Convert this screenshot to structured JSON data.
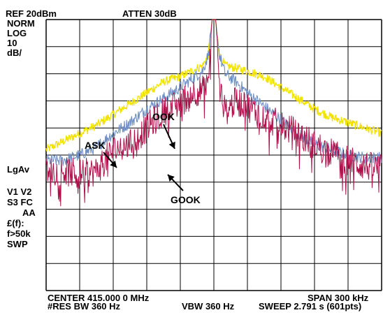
{
  "header": {
    "ref": "REF  20dBm",
    "atten": "ATTEN 30dB"
  },
  "left_panel": {
    "norm": "NORM",
    "log": "LOG",
    "scale": "10",
    "scale_unit": "dB/",
    "lgav": "LgAv",
    "v1v2": "V1 V2",
    "s3fc": "S3 FC",
    "aa": "AA",
    "ff": "£(f):",
    "f50k": "f>50k",
    "swp": "SWP"
  },
  "footer": {
    "center": "CENTER 415.000 0 MHz",
    "res_bw": "#RES BW 360 Hz",
    "vbw": "VBW 360 Hz",
    "span": "SPAN 300 kHz",
    "sweep": "SWEEP 2.791 s (601pts)"
  },
  "chart_data": {
    "type": "line",
    "center_mhz": 415.0,
    "span_khz": 300,
    "ref_level_dbm": 20,
    "scale_db_per_div": 10,
    "x_divisions": 10,
    "y_divisions": 10,
    "grid": true,
    "annotations": [
      "ASK",
      "OOK",
      "GOOK"
    ],
    "colors": {
      "ASK": "#f2e200",
      "OOK": "#6f8fc4",
      "GOOK": "#b0104a",
      "grid": "#000000"
    },
    "series": [
      {
        "name": "ASK",
        "x_offset_khz": [
          -150,
          -135,
          -120,
          -105,
          -90,
          -75,
          -60,
          -45,
          -30,
          -20,
          -10,
          -5,
          -2,
          0,
          2,
          5,
          10,
          20,
          30,
          45,
          60,
          75,
          90,
          105,
          120,
          135,
          150
        ],
        "level_dbm": [
          -28,
          -25,
          -22,
          -19,
          -15,
          -11,
          -7,
          -3,
          -1,
          1,
          3,
          7,
          18,
          38,
          18,
          7,
          3,
          2,
          1,
          -1,
          -5,
          -9,
          -13,
          -16,
          -18,
          -20,
          -22
        ]
      },
      {
        "name": "OOK",
        "x_offset_khz": [
          -150,
          -135,
          -120,
          -105,
          -90,
          -75,
          -60,
          -45,
          -30,
          -20,
          -10,
          -5,
          -2,
          0,
          2,
          5,
          10,
          20,
          30,
          45,
          60,
          75,
          90,
          105,
          120,
          135,
          150
        ],
        "level_dbm": [
          -32,
          -32,
          -30,
          -27,
          -22,
          -18,
          -13,
          -9,
          -5,
          -2,
          1,
          7,
          18,
          38,
          18,
          7,
          0,
          -3,
          -7,
          -12,
          -17,
          -22,
          -26,
          -28,
          -30,
          -31,
          -31
        ]
      },
      {
        "name": "GOOK",
        "x_offset_khz": [
          -150,
          -135,
          -120,
          -105,
          -90,
          -75,
          -60,
          -45,
          -30,
          -20,
          -10,
          -5,
          -2,
          0,
          2,
          5,
          10,
          20,
          30,
          45,
          60,
          75,
          90,
          105,
          120,
          135,
          150
        ],
        "level_dbm": [
          -36,
          -36,
          -37,
          -36,
          -28,
          -26,
          -20,
          -14,
          -11,
          -7,
          -6,
          -5,
          18,
          39,
          18,
          -5,
          -14,
          -10,
          -12,
          -16,
          -19,
          -22,
          -26,
          -29,
          -32,
          -34,
          -35
        ]
      }
    ]
  }
}
